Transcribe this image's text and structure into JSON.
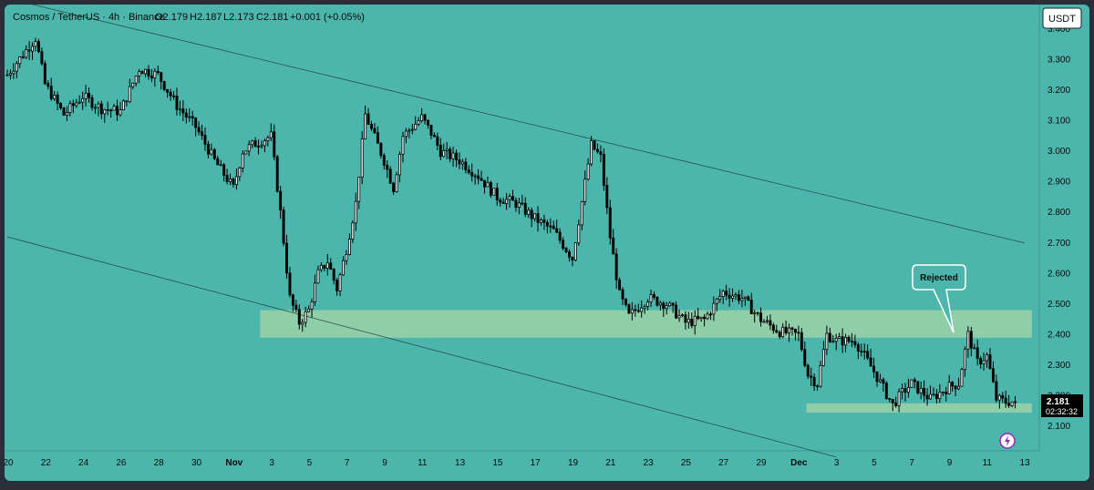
{
  "header": {
    "symbol": "Cosmos / TetherUS · 4h · Binance",
    "open": "O2.179",
    "high": "H2.187",
    "low": "L2.173",
    "close": "C2.181",
    "change": "+0.001 (+0.05%)"
  },
  "currency_button": "USDT",
  "price_tag": {
    "price": "2.181",
    "countdown": "02:32:32"
  },
  "callout": "Rejected",
  "colors": {
    "background": "#4db6ac",
    "dark_bg": "#2a2e39",
    "zone": "#a5d6a7",
    "candle_up": "#ffffff",
    "candle_down": "#000000",
    "trendline": "#1e3a36",
    "text": "#0a0a0a",
    "price_tag_bg": "#000000",
    "badge": "#9c27b0"
  },
  "chart_data": {
    "type": "candlestick",
    "title": "Cosmos / TetherUS · 4h · Binance",
    "y_axis": {
      "range": [
        2.02,
        3.48
      ],
      "ticks": [
        "3.400",
        "3.300",
        "3.200",
        "3.100",
        "3.000",
        "2.900",
        "2.800",
        "2.700",
        "2.600",
        "2.500",
        "2.400",
        "2.300",
        "2.200",
        "2.100"
      ]
    },
    "x_axis": {
      "ticks": [
        "20",
        "22",
        "24",
        "26",
        "28",
        "30",
        "Nov",
        "3",
        "5",
        "7",
        "9",
        "11",
        "13",
        "15",
        "17",
        "19",
        "21",
        "23",
        "25",
        "27",
        "29",
        "Dec",
        "3",
        "5",
        "7",
        "9",
        "11",
        "13"
      ]
    },
    "price_path": [
      [
        "Oct 20",
        3.25
      ],
      [
        "Oct 21",
        3.33
      ],
      [
        "Oct 21.5",
        3.37
      ],
      [
        "Oct 22",
        3.22
      ],
      [
        "Oct 23",
        3.12
      ],
      [
        "Oct 24",
        3.18
      ],
      [
        "Oct 25",
        3.14
      ],
      [
        "Oct 26",
        3.13
      ],
      [
        "Oct 27",
        3.27
      ],
      [
        "Oct 28",
        3.25
      ],
      [
        "Oct 29",
        3.15
      ],
      [
        "Oct 30",
        3.08
      ],
      [
        "Oct 31",
        2.97
      ],
      [
        "Nov 1",
        2.88
      ],
      [
        "Nov 1.5",
        3.0
      ],
      [
        "Nov 2",
        3.02
      ],
      [
        "Nov 3",
        3.05
      ],
      [
        "Nov 3.5",
        2.8
      ],
      [
        "Nov 4",
        2.52
      ],
      [
        "Nov 4.5",
        2.44
      ],
      [
        "Nov 5",
        2.48
      ],
      [
        "Nov 5.5",
        2.6
      ],
      [
        "Nov 6",
        2.64
      ],
      [
        "Nov 6.5",
        2.55
      ],
      [
        "Nov 7",
        2.68
      ],
      [
        "Nov 7.5",
        2.83
      ],
      [
        "Nov 8",
        3.12
      ],
      [
        "Nov 9",
        2.97
      ],
      [
        "Nov 9.5",
        2.88
      ],
      [
        "Nov 10",
        3.05
      ],
      [
        "Nov 11",
        3.11
      ],
      [
        "Nov 11.5",
        3.06
      ],
      [
        "Nov 12",
        3.0
      ],
      [
        "Nov 13",
        2.97
      ],
      [
        "Nov 14",
        2.92
      ],
      [
        "Nov 15",
        2.85
      ],
      [
        "Nov 16",
        2.83
      ],
      [
        "Nov 17",
        2.78
      ],
      [
        "Nov 18",
        2.74
      ],
      [
        "Nov 19",
        2.65
      ],
      [
        "Nov 20",
        3.02
      ],
      [
        "Nov 20.5",
        2.98
      ],
      [
        "Nov 21",
        2.72
      ],
      [
        "Nov 21.5",
        2.53
      ],
      [
        "Nov 22",
        2.46
      ],
      [
        "Nov 23",
        2.52
      ],
      [
        "Nov 24",
        2.5
      ],
      [
        "Nov 25",
        2.44
      ],
      [
        "Nov 26",
        2.45
      ],
      [
        "Nov 27",
        2.54
      ],
      [
        "Nov 28",
        2.52
      ],
      [
        "Nov 29",
        2.45
      ],
      [
        "Nov 30",
        2.41
      ],
      [
        "Dec 1",
        2.4
      ],
      [
        "Dec 1.5",
        2.27
      ],
      [
        "Dec 2",
        2.24
      ],
      [
        "Dec 2.5",
        2.4
      ],
      [
        "Dec 3",
        2.38
      ],
      [
        "Dec 4",
        2.38
      ],
      [
        "Dec 5",
        2.28
      ],
      [
        "Dec 6",
        2.17
      ],
      [
        "Dec 6.5",
        2.21
      ],
      [
        "Dec 7",
        2.24
      ],
      [
        "Dec 8",
        2.19
      ],
      [
        "Dec 9",
        2.23
      ],
      [
        "Dec 9.5",
        2.24
      ],
      [
        "Dec 10",
        2.4
      ],
      [
        "Dec 10.5",
        2.31
      ],
      [
        "Dec 11",
        2.33
      ],
      [
        "Dec 11.5",
        2.19
      ],
      [
        "Dec 12",
        2.18
      ],
      [
        "Dec 12.5",
        2.181
      ]
    ],
    "zones": [
      {
        "label": "",
        "from": 2.39,
        "to": 2.48,
        "start": "Nov 3",
        "end": "Dec 13"
      },
      {
        "label": "",
        "from": 2.145,
        "to": 2.175,
        "start": "Dec 2",
        "end": "Dec 13"
      }
    ],
    "trendlines": [
      {
        "from": [
          "Oct 20",
          3.5
        ],
        "to": [
          "Dec 13",
          2.7
        ]
      },
      {
        "from": [
          "Oct 20",
          2.72
        ],
        "to": [
          "Dec 3",
          2.0
        ]
      }
    ],
    "last_price": 2.181
  }
}
